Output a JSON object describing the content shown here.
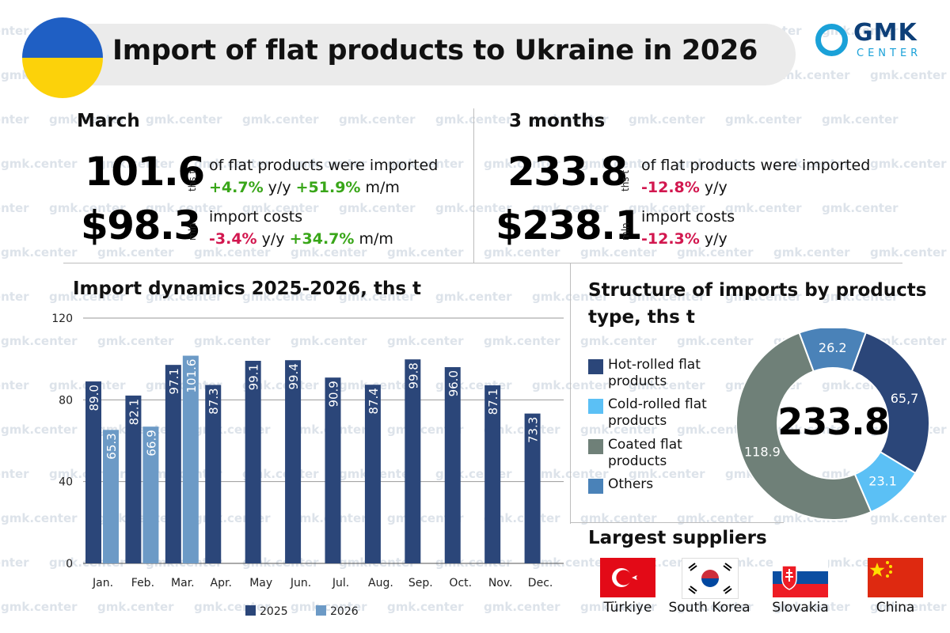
{
  "header": {
    "title": "Import of flat products to Ukraine in 2026",
    "logo_main": "GMK",
    "logo_sub": "CENTER",
    "watermark": "gmk.center"
  },
  "colors": {
    "series_2025": "#2b4679",
    "series_2026": "#6c9ac6",
    "positive": "#39a619",
    "negative": "#d2174f",
    "hot_rolled": "#2b4679",
    "cold_rolled": "#5bc0f5",
    "coated": "#6f8078",
    "others": "#4a82b8"
  },
  "march": {
    "heading": "March",
    "volume": "101.6",
    "volume_unit": "ths t",
    "volume_text": "of flat products were imported",
    "volume_yy": "+4.7%",
    "yy_label": "y/y",
    "volume_mm": "+51.9%",
    "mm_label": "m/m",
    "cost": "$98.3",
    "cost_unit": "mln",
    "cost_text": "import costs",
    "cost_yy": "-3.4%",
    "cost_mm": "+34.7%"
  },
  "three_months": {
    "heading": "3 months",
    "volume": "233.8",
    "volume_unit": "ths t",
    "volume_text": "of flat products were imported",
    "volume_yy": "-12.8%",
    "yy_label": "y/y",
    "cost": "$238.1",
    "cost_unit": "mln",
    "cost_text": "import costs",
    "cost_yy": "-12.3%"
  },
  "chart_data": [
    {
      "type": "bar",
      "title": "Import dynamics 2025-2026, ths t",
      "categories": [
        "Jan.",
        "Feb.",
        "Mar.",
        "Apr.",
        "May",
        "Jun.",
        "Jul.",
        "Aug.",
        "Sep.",
        "Oct.",
        "Nov.",
        "Dec."
      ],
      "series": [
        {
          "name": "2025",
          "values": [
            89.0,
            82.1,
            97.1,
            87.3,
            99.1,
            99.4,
            90.9,
            87.4,
            99.8,
            96.0,
            87.1,
            73.3
          ]
        },
        {
          "name": "2026",
          "values": [
            65.3,
            66.9,
            101.6,
            null,
            null,
            null,
            null,
            null,
            null,
            null,
            null,
            null
          ]
        }
      ],
      "value_labels": [
        [
          "89.0",
          "82.1",
          "97.1",
          "87.3",
          "99.1",
          "99.4",
          "90.9",
          "87.4",
          "99.8",
          "96.0",
          "87.1",
          "73.3"
        ],
        [
          "65.3",
          "66.9",
          "101.6",
          "",
          "",
          "",
          "",
          "",
          "",
          "",
          "",
          ""
        ]
      ],
      "y_ticks": [
        "0",
        "40",
        "80",
        "120"
      ],
      "y_tick_values": [
        0,
        40,
        80,
        120
      ],
      "ylim": [
        0,
        120
      ],
      "grid": true,
      "legend_position": "bottom"
    },
    {
      "type": "pie",
      "title": "Structure of imports by products type, ths t",
      "center_label": "233.8",
      "labels": [
        "Hot-rolled flat products",
        "Cold-rolled flat products",
        "Coated flat products",
        "Others"
      ],
      "legend_lines": [
        [
          "Hot-rolled flat",
          "products"
        ],
        [
          "Cold-rolled flat",
          "products"
        ],
        [
          "Coated flat",
          "products"
        ],
        [
          "Others"
        ]
      ],
      "values": [
        65.7,
        23.1,
        118.9,
        26.2
      ],
      "value_labels": [
        "65,7",
        "23.1",
        "118.9",
        "26.2"
      ],
      "legend_position": "left"
    }
  ],
  "suppliers": {
    "heading": "Largest suppliers",
    "items": [
      {
        "name": "Türkiye",
        "flag": "turkey-flag"
      },
      {
        "name": "South Korea",
        "flag": "south-korea-flag"
      },
      {
        "name": "Slovakia",
        "flag": "slovakia-flag"
      },
      {
        "name": "China",
        "flag": "china-flag"
      }
    ]
  }
}
